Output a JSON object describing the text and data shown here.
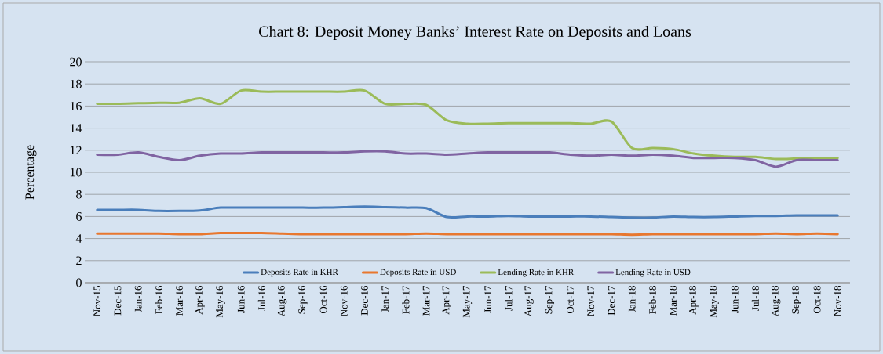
{
  "chart_data": {
    "type": "line",
    "title": "Chart 8: Deposit Money Banks’ Interest Rate on Deposits and Loans",
    "ylabel": "Percentage",
    "categories": [
      "Nov-15",
      "Dec-15",
      "Jan-16",
      "Feb-16",
      "Mar-16",
      "Apr-16",
      "May-16",
      "Jun-16",
      "Jul-16",
      "Aug-16",
      "Sep-16",
      "Oct-16",
      "Nov-16",
      "Dec-16",
      "Jan-17",
      "Feb-17",
      "Mar-17",
      "Apr-17",
      "May-17",
      "Jun-17",
      "Jul-17",
      "Aug-17",
      "Sep-17",
      "Oct-17",
      "Nov-17",
      "Dec-17",
      "Jan-18",
      "Feb-18",
      "Mar-18",
      "Apr-18",
      "May-18",
      "Jun-18",
      "Jul-18",
      "Aug-18",
      "Sep-18",
      "Oct-18",
      "Nov-18"
    ],
    "series": [
      {
        "name": "Deposits Rate in KHR",
        "color": "#4a7ebb",
        "values": [
          6.6,
          6.6,
          6.6,
          6.5,
          6.5,
          6.55,
          6.8,
          6.8,
          6.8,
          6.8,
          6.8,
          6.8,
          6.85,
          6.9,
          6.85,
          6.8,
          6.75,
          5.95,
          6.0,
          6.0,
          6.05,
          6.0,
          6.0,
          6.0,
          6.0,
          5.95,
          5.9,
          5.9,
          6.0,
          5.95,
          5.95,
          6.0,
          6.05,
          6.05,
          6.1,
          6.1,
          6.1
        ]
      },
      {
        "name": "Deposits Rate in USD",
        "color": "#e8772e",
        "values": [
          4.45,
          4.45,
          4.45,
          4.45,
          4.4,
          4.4,
          4.5,
          4.5,
          4.5,
          4.45,
          4.4,
          4.4,
          4.4,
          4.4,
          4.4,
          4.4,
          4.45,
          4.4,
          4.4,
          4.4,
          4.4,
          4.4,
          4.4,
          4.4,
          4.4,
          4.4,
          4.35,
          4.4,
          4.4,
          4.4,
          4.4,
          4.4,
          4.4,
          4.45,
          4.4,
          4.45,
          4.4
        ]
      },
      {
        "name": "Lending Rate in KHR",
        "color": "#9bbb59",
        "values": [
          16.2,
          16.2,
          16.25,
          16.3,
          16.3,
          16.7,
          16.2,
          17.4,
          17.3,
          17.3,
          17.3,
          17.3,
          17.3,
          17.4,
          16.2,
          16.2,
          16.1,
          14.7,
          14.4,
          14.4,
          14.45,
          14.45,
          14.45,
          14.45,
          14.4,
          14.6,
          12.2,
          12.2,
          12.1,
          11.7,
          11.5,
          11.4,
          11.4,
          11.2,
          11.25,
          11.3,
          11.3
        ]
      },
      {
        "name": "Lending Rate in USD",
        "color": "#8064a2",
        "values": [
          11.6,
          11.6,
          11.8,
          11.4,
          11.1,
          11.5,
          11.7,
          11.7,
          11.8,
          11.8,
          11.8,
          11.8,
          11.8,
          11.9,
          11.9,
          11.7,
          11.7,
          11.6,
          11.7,
          11.8,
          11.8,
          11.8,
          11.8,
          11.6,
          11.5,
          11.6,
          11.5,
          11.6,
          11.5,
          11.3,
          11.3,
          11.3,
          11.1,
          10.5,
          11.1,
          11.1,
          11.1
        ]
      }
    ],
    "ylim": [
      0,
      20
    ],
    "yticks": [
      0,
      2,
      4,
      6,
      8,
      10,
      12,
      14,
      16,
      18,
      20
    ],
    "grid": "y",
    "legend": "bottom",
    "marker": "none",
    "line_style": "solid"
  }
}
